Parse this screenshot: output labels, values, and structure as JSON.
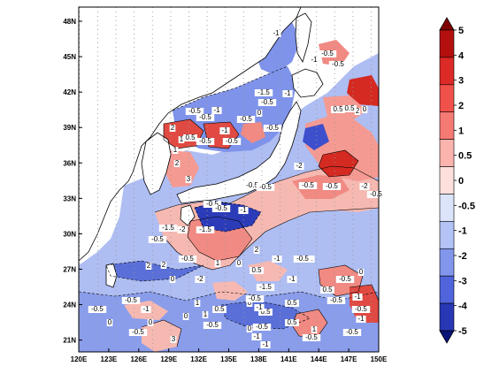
{
  "map": {
    "lon_ticks": [
      "120E",
      "123E",
      "126E",
      "129E",
      "132E",
      "135E",
      "138E",
      "141E",
      "144E",
      "147E",
      "150E"
    ],
    "lat_ticks": [
      "48N",
      "45N",
      "42N",
      "39N",
      "36N",
      "33N",
      "30N",
      "27N",
      "24N",
      "21N"
    ],
    "contour_labels": [
      "-1",
      "-0.5",
      "-0.5",
      "-1",
      "-1.5",
      "-0.5",
      "-1",
      "-0.5",
      "-1",
      "-0.5",
      "0",
      "-0.5",
      "-0.5",
      "2",
      "1",
      "0.5",
      "1",
      "2",
      "3",
      "-1",
      "-0.5",
      "-0.5",
      "-2",
      "-0.5",
      "-0.5",
      "-0.5",
      "-0.5",
      "-0.5",
      "-1.5",
      "-2",
      "-0.5",
      "-2",
      "-0.5",
      "-1",
      "1",
      "-0.5",
      "-1.5",
      "-0.5",
      "2",
      "-1",
      "1",
      "-1",
      "-0.5",
      "0",
      "0.5",
      "-0.5",
      "-1",
      "-1.5",
      "0",
      "0.5",
      "0.5",
      "-0.5",
      "-1",
      "-0.5",
      "0",
      "0.5",
      "-0.5",
      "-1",
      "0",
      "-0.5",
      "-0.5",
      "0",
      "-0.5",
      "0",
      "0.5",
      "-1",
      "-2",
      "0",
      "-0.5",
      "0.5",
      "-0.5",
      "1",
      "-1",
      "-1",
      "-0.5",
      "2",
      "0",
      "3",
      "-0.5",
      "-1",
      "1",
      "2",
      "0.5",
      "0",
      "0.5",
      "1",
      "2"
    ]
  },
  "colorbar": {
    "labels": [
      "5",
      "4",
      "3",
      "2",
      "1",
      "0.5",
      "0",
      "-0.5",
      "-1",
      "-2",
      "-3",
      "-4",
      "-5"
    ],
    "colors": [
      "#7f0000",
      "#b40f0f",
      "#dc2a26",
      "#f0514a",
      "#f57a74",
      "#fab4ad",
      "#fde0dc",
      "#dce4fa",
      "#b4c3f5",
      "#8296ec",
      "#5064dc",
      "#2837b4",
      "#0a1478"
    ]
  }
}
